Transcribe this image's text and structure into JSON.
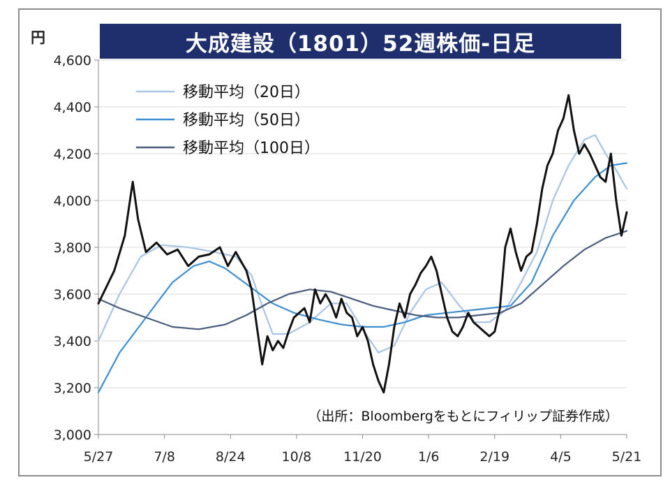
{
  "title": "大成建設（1801）52週株価‐日足",
  "unit": "円",
  "source": "（出所：Bloombergをもとにフィリップ証券作成）",
  "colors": {
    "title_bg": "#1f2f6e",
    "price": "#111111",
    "ma20": "#a9c4e4",
    "ma50": "#3d8fd1",
    "ma100": "#4a5c7e",
    "grid": "#d9d9d9"
  },
  "chart_data": {
    "type": "line",
    "title": "大成建設（1801）52週株価‐日足",
    "ylabel": "円",
    "ylim": [
      3000,
      4600
    ],
    "yticks": [
      "3,000",
      "3,200",
      "3,400",
      "3,600",
      "3,800",
      "4,000",
      "4,200",
      "4,400",
      "4,600"
    ],
    "ytick_values": [
      3000,
      3200,
      3400,
      3600,
      3800,
      4000,
      4200,
      4400,
      4600
    ],
    "x_labels": [
      "5/27",
      "7/8",
      "8/24",
      "10/8",
      "11/20",
      "1/6",
      "2/19",
      "4/5",
      "5/21"
    ],
    "grid": true,
    "legend_position": "top-left",
    "series": [
      {
        "name": "",
        "key": "price",
        "points": [
          [
            0,
            3560
          ],
          [
            0.03,
            3700
          ],
          [
            0.05,
            3850
          ],
          [
            0.065,
            4080
          ],
          [
            0.075,
            3920
          ],
          [
            0.09,
            3780
          ],
          [
            0.11,
            3820
          ],
          [
            0.13,
            3770
          ],
          [
            0.15,
            3790
          ],
          [
            0.17,
            3720
          ],
          [
            0.19,
            3760
          ],
          [
            0.21,
            3770
          ],
          [
            0.23,
            3800
          ],
          [
            0.245,
            3720
          ],
          [
            0.26,
            3780
          ],
          [
            0.27,
            3740
          ],
          [
            0.28,
            3700
          ],
          [
            0.29,
            3620
          ],
          [
            0.3,
            3460
          ],
          [
            0.31,
            3300
          ],
          [
            0.32,
            3420
          ],
          [
            0.33,
            3360
          ],
          [
            0.34,
            3400
          ],
          [
            0.35,
            3370
          ],
          [
            0.36,
            3440
          ],
          [
            0.37,
            3500
          ],
          [
            0.38,
            3520
          ],
          [
            0.39,
            3540
          ],
          [
            0.4,
            3480
          ],
          [
            0.41,
            3620
          ],
          [
            0.42,
            3560
          ],
          [
            0.43,
            3600
          ],
          [
            0.44,
            3560
          ],
          [
            0.45,
            3500
          ],
          [
            0.46,
            3580
          ],
          [
            0.47,
            3520
          ],
          [
            0.48,
            3500
          ],
          [
            0.49,
            3420
          ],
          [
            0.5,
            3460
          ],
          [
            0.51,
            3400
          ],
          [
            0.52,
            3300
          ],
          [
            0.53,
            3230
          ],
          [
            0.54,
            3180
          ],
          [
            0.55,
            3300
          ],
          [
            0.56,
            3460
          ],
          [
            0.57,
            3560
          ],
          [
            0.58,
            3500
          ],
          [
            0.59,
            3600
          ],
          [
            0.6,
            3640
          ],
          [
            0.61,
            3690
          ],
          [
            0.62,
            3720
          ],
          [
            0.63,
            3760
          ],
          [
            0.64,
            3700
          ],
          [
            0.65,
            3600
          ],
          [
            0.66,
            3500
          ],
          [
            0.67,
            3440
          ],
          [
            0.68,
            3420
          ],
          [
            0.69,
            3460
          ],
          [
            0.7,
            3520
          ],
          [
            0.71,
            3480
          ],
          [
            0.72,
            3460
          ],
          [
            0.73,
            3440
          ],
          [
            0.74,
            3420
          ],
          [
            0.75,
            3440
          ],
          [
            0.76,
            3540
          ],
          [
            0.77,
            3800
          ],
          [
            0.78,
            3880
          ],
          [
            0.79,
            3780
          ],
          [
            0.8,
            3700
          ],
          [
            0.81,
            3760
          ],
          [
            0.82,
            3780
          ],
          [
            0.83,
            3900
          ],
          [
            0.84,
            4050
          ],
          [
            0.85,
            4150
          ],
          [
            0.86,
            4200
          ],
          [
            0.87,
            4300
          ],
          [
            0.88,
            4350
          ],
          [
            0.89,
            4450
          ],
          [
            0.9,
            4300
          ],
          [
            0.91,
            4200
          ],
          [
            0.92,
            4240
          ],
          [
            0.93,
            4200
          ],
          [
            0.94,
            4150
          ],
          [
            0.95,
            4100
          ],
          [
            0.96,
            4080
          ],
          [
            0.97,
            4200
          ],
          [
            0.98,
            4000
          ],
          [
            0.99,
            3850
          ],
          [
            1.0,
            3950
          ]
        ]
      },
      {
        "name": "移動平均（20日）",
        "key": "ma20",
        "points": [
          [
            0,
            3400
          ],
          [
            0.04,
            3600
          ],
          [
            0.08,
            3760
          ],
          [
            0.12,
            3810
          ],
          [
            0.17,
            3800
          ],
          [
            0.22,
            3780
          ],
          [
            0.26,
            3760
          ],
          [
            0.29,
            3680
          ],
          [
            0.31,
            3550
          ],
          [
            0.33,
            3430
          ],
          [
            0.36,
            3430
          ],
          [
            0.4,
            3480
          ],
          [
            0.44,
            3560
          ],
          [
            0.47,
            3560
          ],
          [
            0.5,
            3450
          ],
          [
            0.53,
            3350
          ],
          [
            0.56,
            3380
          ],
          [
            0.59,
            3520
          ],
          [
            0.62,
            3620
          ],
          [
            0.65,
            3650
          ],
          [
            0.68,
            3560
          ],
          [
            0.71,
            3480
          ],
          [
            0.74,
            3480
          ],
          [
            0.77,
            3530
          ],
          [
            0.8,
            3650
          ],
          [
            0.83,
            3780
          ],
          [
            0.86,
            4000
          ],
          [
            0.89,
            4150
          ],
          [
            0.92,
            4260
          ],
          [
            0.94,
            4280
          ],
          [
            0.96,
            4200
          ],
          [
            0.98,
            4130
          ],
          [
            1.0,
            4050
          ]
        ]
      },
      {
        "name": "移動平均（50日）",
        "key": "ma50",
        "points": [
          [
            0,
            3180
          ],
          [
            0.04,
            3350
          ],
          [
            0.09,
            3500
          ],
          [
            0.14,
            3650
          ],
          [
            0.18,
            3720
          ],
          [
            0.21,
            3740
          ],
          [
            0.24,
            3710
          ],
          [
            0.27,
            3660
          ],
          [
            0.3,
            3610
          ],
          [
            0.33,
            3560
          ],
          [
            0.37,
            3520
          ],
          [
            0.42,
            3490
          ],
          [
            0.46,
            3470
          ],
          [
            0.5,
            3460
          ],
          [
            0.54,
            3460
          ],
          [
            0.58,
            3480
          ],
          [
            0.62,
            3510
          ],
          [
            0.66,
            3520
          ],
          [
            0.7,
            3530
          ],
          [
            0.74,
            3540
          ],
          [
            0.78,
            3550
          ],
          [
            0.82,
            3650
          ],
          [
            0.86,
            3850
          ],
          [
            0.9,
            4000
          ],
          [
            0.94,
            4100
          ],
          [
            0.97,
            4150
          ],
          [
            1.0,
            4160
          ]
        ]
      },
      {
        "name": "移動平均（100日）",
        "key": "ma100",
        "points": [
          [
            0,
            3580
          ],
          [
            0.04,
            3540
          ],
          [
            0.09,
            3500
          ],
          [
            0.14,
            3460
          ],
          [
            0.19,
            3450
          ],
          [
            0.24,
            3470
          ],
          [
            0.28,
            3510
          ],
          [
            0.32,
            3560
          ],
          [
            0.36,
            3600
          ],
          [
            0.4,
            3620
          ],
          [
            0.44,
            3610
          ],
          [
            0.48,
            3580
          ],
          [
            0.52,
            3550
          ],
          [
            0.56,
            3530
          ],
          [
            0.6,
            3510
          ],
          [
            0.64,
            3500
          ],
          [
            0.68,
            3500
          ],
          [
            0.72,
            3510
          ],
          [
            0.76,
            3520
          ],
          [
            0.8,
            3560
          ],
          [
            0.84,
            3640
          ],
          [
            0.88,
            3720
          ],
          [
            0.92,
            3790
          ],
          [
            0.96,
            3840
          ],
          [
            1.0,
            3870
          ]
        ]
      }
    ]
  }
}
